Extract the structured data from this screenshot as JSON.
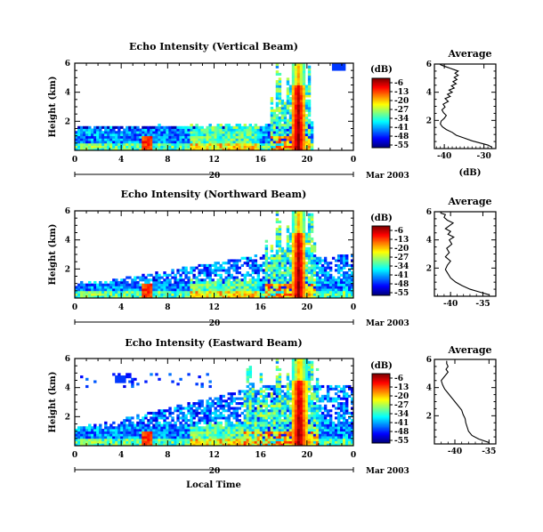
{
  "chart_data": [
    {
      "type": "heatmap",
      "title": "Echo Intensity (Vertical Beam)",
      "ylabel": "Height (km)",
      "xlim": [
        0,
        24
      ],
      "ylim": [
        0,
        6
      ],
      "xticks": [
        "0",
        "4",
        "8",
        "12",
        "16",
        "20",
        "0"
      ],
      "yticks": [
        "2",
        "4",
        "6"
      ],
      "date_label": "20",
      "month_year": "Mar 2003",
      "colorbar": {
        "unit": "(dB)",
        "labels": [
          "-6",
          "-13",
          "-20",
          "-27",
          "-34",
          "-41",
          "-48",
          "-55"
        ]
      },
      "features": {
        "base_top_km": 1.3,
        "cloud_top_km": 1.7,
        "cloud_extent_hours": [
          0,
          20.5
        ],
        "band_km": 1.6,
        "core_hours": [
          18.6,
          19.9
        ],
        "core_top_km": 6.0,
        "convective_hours": [
          16.8,
          20.2
        ],
        "upper_blob_hour": 22.7,
        "upper_blob_km": 5.8
      }
    },
    {
      "type": "heatmap",
      "title": "Echo Intensity (Northward Beam)",
      "ylabel": "Height (km)",
      "xlim": [
        0,
        24
      ],
      "ylim": [
        0,
        6
      ],
      "xticks": [
        "0",
        "4",
        "8",
        "12",
        "16",
        "20",
        "0"
      ],
      "yticks": [
        "2",
        "4",
        "6"
      ],
      "date_label": "20",
      "month_year": "Mar 2003",
      "colorbar": {
        "unit": "(dB)",
        "labels": [
          "-6",
          "-13",
          "-20",
          "-27",
          "-34",
          "-41",
          "-48",
          "-55"
        ]
      },
      "features": {
        "base_top_km": 0.8,
        "cloud_top_km": 3.0,
        "cloud_extent_hours": [
          0,
          24
        ],
        "band_km": 0,
        "core_hours": [
          18.7,
          19.9
        ],
        "core_top_km": 6.0,
        "convective_hours": [
          16.5,
          20.8
        ],
        "upper_blob_hour": -1,
        "upper_blob_km": 0
      }
    },
    {
      "type": "heatmap",
      "title": "Echo Intensity (Eastward Beam)",
      "ylabel": "Height (km)",
      "xlabel": "Local Time",
      "xlim": [
        0,
        24
      ],
      "ylim": [
        0,
        6
      ],
      "xticks": [
        "0",
        "4",
        "8",
        "12",
        "16",
        "20",
        "0"
      ],
      "yticks": [
        "2",
        "4",
        "6"
      ],
      "date_label": "20",
      "month_year": "Mar 2003",
      "colorbar": {
        "unit": "(dB)",
        "labels": [
          "-6",
          "-13",
          "-20",
          "-27",
          "-34",
          "-41",
          "-48",
          "-55"
        ]
      },
      "features": {
        "base_top_km": 1.1,
        "cloud_top_km": 4.1,
        "cloud_extent_hours": [
          0,
          24
        ],
        "band_km": 0,
        "core_hours": [
          18.7,
          20.0
        ],
        "core_top_km": 6.0,
        "convective_hours": [
          14.5,
          21.0
        ],
        "upper_blob_hour": 4.0,
        "upper_blob_km": 4.6
      }
    },
    {
      "type": "line",
      "title": "Average",
      "xlabel": "(dB)",
      "xlim": [
        -42.5,
        -27
      ],
      "ylim": [
        0,
        6
      ],
      "xticks": [
        "-40",
        "-30"
      ],
      "xtick_values": [
        -40,
        -30
      ],
      "yticks": [
        "2",
        "4",
        "6"
      ],
      "x": [
        -28,
        -29,
        -31,
        -33,
        -35,
        -37,
        -38,
        -39.5,
        -40.5,
        -41,
        -40.8,
        -40,
        -39.5,
        -40.2,
        -40.6,
        -39.8,
        -40.3,
        -39,
        -39.8,
        -38.5,
        -39.2,
        -38,
        -38.8,
        -37.5,
        -38.2,
        -37,
        -37.8,
        -36.8,
        -37.5,
        -36.5,
        -37.3,
        -36.5,
        -37.5,
        -38.5,
        -39.5,
        -40.5,
        -41,
        -41
      ],
      "y": [
        0.1,
        0.25,
        0.4,
        0.55,
        0.75,
        0.95,
        1.15,
        1.35,
        1.55,
        1.75,
        1.95,
        2.15,
        2.35,
        2.55,
        2.75,
        2.95,
        3.15,
        3.35,
        3.55,
        3.7,
        3.85,
        4.0,
        4.15,
        4.3,
        4.45,
        4.6,
        4.75,
        4.9,
        5.05,
        5.2,
        5.35,
        5.5,
        5.6,
        5.7,
        5.8,
        5.9,
        5.96,
        6.0
      ]
    },
    {
      "type": "line",
      "title": "Average",
      "xlabel": "(dB)",
      "xlim": [
        -42.5,
        -33
      ],
      "ylim": [
        0,
        6
      ],
      "xticks": [
        "-40",
        "-35"
      ],
      "xtick_values": [
        -40,
        -35
      ],
      "yticks": [
        "2",
        "4",
        "6"
      ],
      "x": [
        -34,
        -35.5,
        -37,
        -38.2,
        -39.2,
        -40,
        -40.4,
        -40.8,
        -40.5,
        -40,
        -40.8,
        -40.2,
        -40.6,
        -39.8,
        -40.2,
        -39.5,
        -40.4,
        -40,
        -40.8,
        -40.2,
        -39.6,
        -40.5,
        -41,
        -40.8,
        -41.5,
        -41.5
      ],
      "y": [
        0.1,
        0.3,
        0.5,
        0.75,
        1.0,
        1.3,
        1.6,
        1.9,
        2.2,
        2.5,
        2.8,
        3.1,
        3.4,
        3.7,
        4.0,
        4.2,
        4.4,
        4.6,
        4.8,
        5.0,
        5.2,
        5.4,
        5.6,
        5.8,
        5.9,
        6.0
      ]
    },
    {
      "type": "line",
      "title": "Average",
      "xlabel": "(dB)",
      "xlim": [
        -43,
        -34
      ],
      "ylim": [
        0,
        6
      ],
      "xticks": [
        "-40",
        "-35"
      ],
      "xtick_values": [
        -40,
        -35
      ],
      "yticks": [
        "2",
        "4",
        "6"
      ],
      "x": [
        -35,
        -36.5,
        -37.5,
        -38,
        -38.2,
        -38.4,
        -38.5,
        -38.8,
        -39,
        -39.5,
        -40,
        -40.5,
        -41,
        -41.5,
        -41.8,
        -42,
        -41.5,
        -41,
        -41.3,
        -41,
        -41.2,
        -41.2
      ],
      "y": [
        0.1,
        0.35,
        0.6,
        0.9,
        1.2,
        1.5,
        1.8,
        2.1,
        2.4,
        2.7,
        3.0,
        3.3,
        3.6,
        3.9,
        4.2,
        4.5,
        4.8,
        5.1,
        5.3,
        5.5,
        5.7,
        5.9
      ]
    }
  ]
}
